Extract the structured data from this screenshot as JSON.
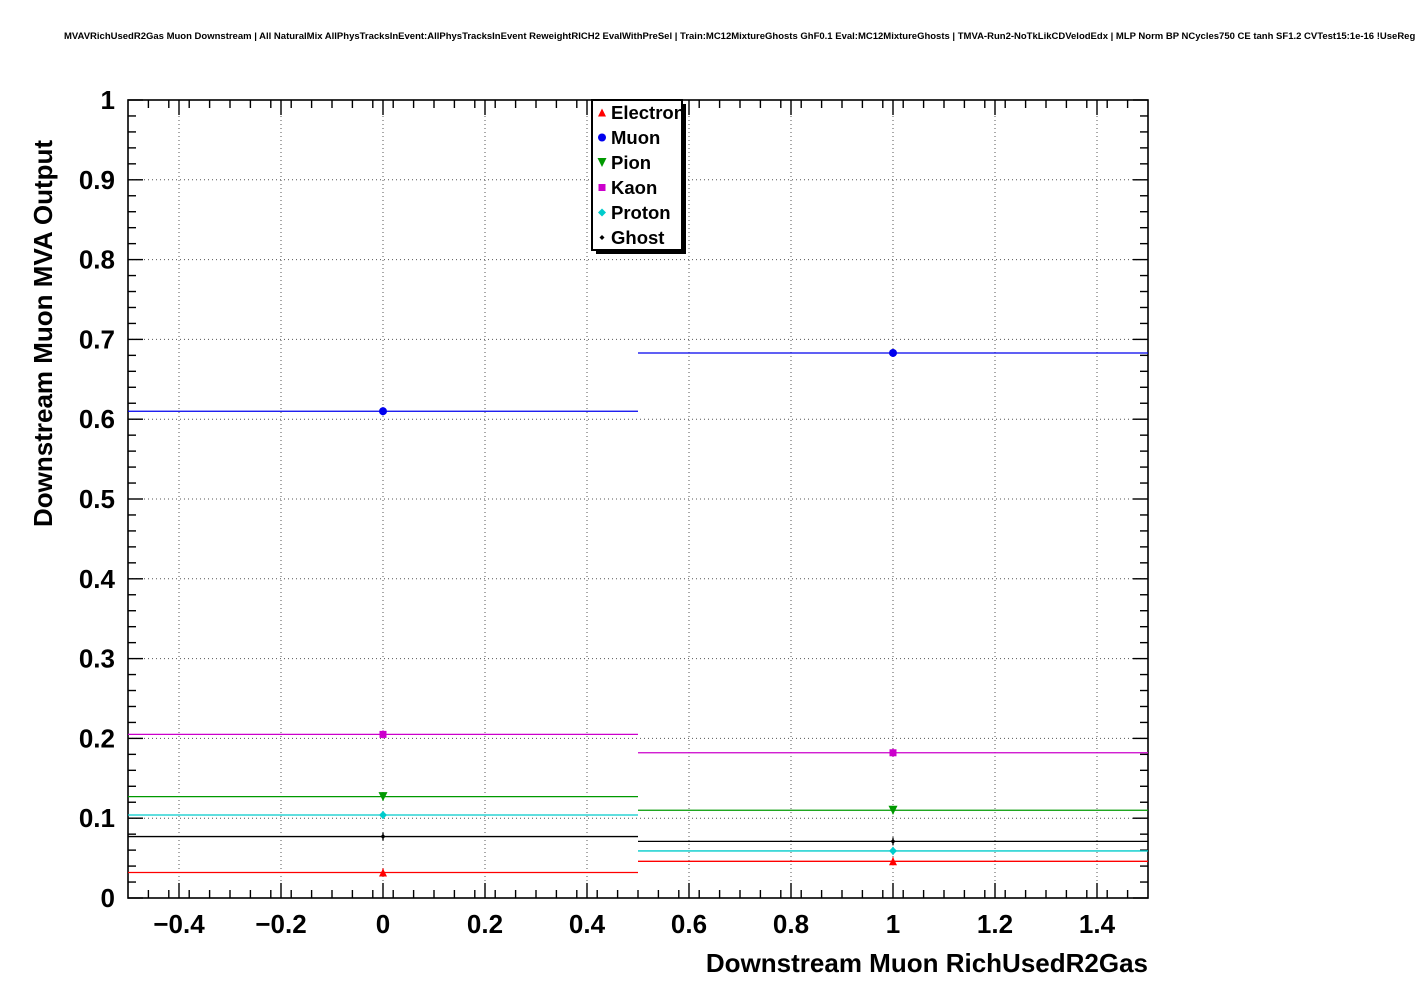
{
  "title": "MVAVRichUsedR2Gas Muon Downstream | All NaturalMix AllPhysTracksInEvent:AllPhysTracksInEvent ReweightRICH2 EvalWithPreSel | Train:MC12MixtureGhosts GhF0.1 Eval:MC12MixtureGhosts | TMVA-Run2-NoTkLikCDVelodEdx | MLP Norm BP NCycles750 CE tanh SF1.2 CVTest15:1e-16 !UseReg",
  "chart_data": {
    "type": "line",
    "title": "",
    "xlabel": "Downstream Muon RichUsedR2Gas",
    "ylabel": "Downstream Muon MVA Output",
    "xlim": [
      -0.5,
      1.5
    ],
    "ylim": [
      0,
      1
    ],
    "grid": true,
    "grid_style": "dotted",
    "legend_position": "top-center",
    "x_major_ticks": [
      -0.4,
      -0.2,
      0,
      0.2,
      0.4,
      0.6,
      0.8,
      1,
      1.2,
      1.4
    ],
    "x_tick_labels": [
      "−0.4",
      "−0.2",
      "0",
      "0.2",
      "0.4",
      "0.6",
      "0.8",
      "1",
      "1.2",
      "1.4"
    ],
    "x_minor_step": 0.04,
    "y_major_ticks": [
      0,
      0.1,
      0.2,
      0.3,
      0.4,
      0.5,
      0.6,
      0.7,
      0.8,
      0.9,
      1
    ],
    "y_tick_labels": [
      "0",
      "0.1",
      "0.2",
      "0.3",
      "0.4",
      "0.5",
      "0.6",
      "0.7",
      "0.8",
      "0.9",
      "1"
    ],
    "y_minor_step": 0.02,
    "bin_edges": [
      -0.5,
      0.5,
      1.5
    ],
    "bin_centers": [
      0,
      1
    ],
    "series": [
      {
        "name": "Electron",
        "color": "#ff0000",
        "marker": "triangle-up",
        "values": [
          0.032,
          0.046
        ]
      },
      {
        "name": "Muon",
        "color": "#0000ee",
        "marker": "circle",
        "values": [
          0.61,
          0.683
        ]
      },
      {
        "name": "Pion",
        "color": "#009900",
        "marker": "triangle-down",
        "values": [
          0.127,
          0.11
        ]
      },
      {
        "name": "Kaon",
        "color": "#cc00cc",
        "marker": "square",
        "values": [
          0.205,
          0.182
        ]
      },
      {
        "name": "Proton",
        "color": "#00cccc",
        "marker": "diamond",
        "values": [
          0.104,
          0.059
        ]
      },
      {
        "name": "Ghost",
        "color": "#000000",
        "marker": "diamond-small",
        "values": [
          0.077,
          0.071
        ]
      }
    ]
  }
}
